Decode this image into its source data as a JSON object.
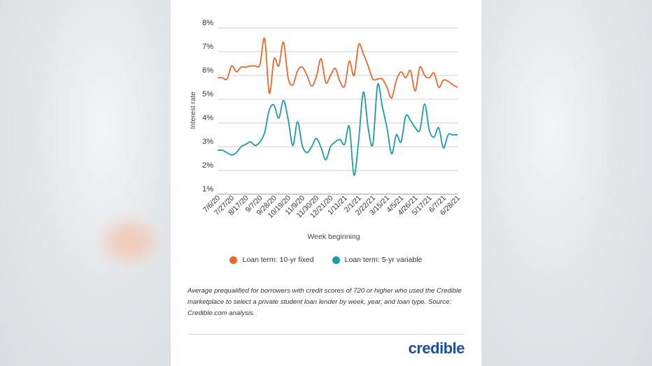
{
  "chart_data": {
    "type": "line",
    "title": "",
    "xlabel": "Week beginning",
    "ylabel": "Interest rate",
    "ylim": [
      1,
      8
    ],
    "yticks": [
      "1%",
      "2%",
      "3%",
      "4%",
      "5%",
      "6%",
      "7%",
      "8%"
    ],
    "grid": true,
    "legend_position": "bottom",
    "x_tick_labels": [
      "7/6/20",
      "7/27/20",
      "8/17/20",
      "9/7/20",
      "9/28/20",
      "10/19/20",
      "11/9/20",
      "11/30/20",
      "12/21/20",
      "1/11/21",
      "2/1/21",
      "2/22/21",
      "3/15/21",
      "4/5/21",
      "4/26/21",
      "5/17/21",
      "6/7/21",
      "6/28/21"
    ],
    "x": [
      "7/6/20",
      "7/13/20",
      "7/20/20",
      "7/27/20",
      "8/3/20",
      "8/10/20",
      "8/17/20",
      "8/24/20",
      "8/31/20",
      "9/7/20",
      "9/14/20",
      "9/21/20",
      "9/28/20",
      "10/5/20",
      "10/12/20",
      "10/19/20",
      "10/26/20",
      "11/2/20",
      "11/9/20",
      "11/16/20",
      "11/23/20",
      "11/30/20",
      "12/7/20",
      "12/14/20",
      "12/21/20",
      "12/28/20",
      "1/4/21",
      "1/11/21",
      "1/18/21",
      "1/25/21",
      "2/1/21",
      "2/8/21",
      "2/15/21",
      "2/22/21",
      "3/1/21",
      "3/8/21",
      "3/15/21",
      "3/22/21",
      "3/29/21",
      "4/5/21",
      "4/12/21",
      "4/19/21",
      "4/26/21",
      "5/3/21",
      "5/10/21",
      "5/17/21",
      "5/24/21",
      "5/31/21",
      "6/7/21",
      "6/14/21",
      "6/21/21",
      "6/28/21"
    ],
    "series": [
      {
        "name": "Loan term: 10-yr fixed",
        "color": "#e8692e",
        "values": [
          5.9,
          5.9,
          5.85,
          6.4,
          6.15,
          6.35,
          6.35,
          6.4,
          6.4,
          6.45,
          7.55,
          5.25,
          6.7,
          6.4,
          7.4,
          5.9,
          5.6,
          6.2,
          6.35,
          6.0,
          5.55,
          5.95,
          6.7,
          5.7,
          6.0,
          6.3,
          5.75,
          5.55,
          6.6,
          6.0,
          7.3,
          6.9,
          6.4,
          5.85,
          5.85,
          5.85,
          5.5,
          5.05,
          5.8,
          6.15,
          5.9,
          6.2,
          5.35,
          6.35,
          6.0,
          5.9,
          6.1,
          5.5,
          5.8,
          5.75,
          5.6,
          5.5
        ]
      },
      {
        "name": "Loan term: 5-yr variable",
        "color": "#1e9aa8",
        "values": [
          2.85,
          2.85,
          2.75,
          2.65,
          2.75,
          3.0,
          3.1,
          3.2,
          3.05,
          3.2,
          3.6,
          4.55,
          4.75,
          4.2,
          4.95,
          4.15,
          3.05,
          4.05,
          3.05,
          2.75,
          3.0,
          3.35,
          2.95,
          2.45,
          3.0,
          3.2,
          3.3,
          3.1,
          3.85,
          1.8,
          3.3,
          5.3,
          3.8,
          3.1,
          5.6,
          4.7,
          3.8,
          2.7,
          3.5,
          3.2,
          4.3,
          4.1,
          3.8,
          3.7,
          4.8,
          3.7,
          3.4,
          3.8,
          2.95,
          3.5,
          3.5,
          3.5
        ]
      }
    ]
  },
  "legend": {
    "fixed_label": "Loan term: 10-yr fixed",
    "variable_label": "Loan term: 5-yr variable",
    "fixed_color": "#e8692e",
    "variable_color": "#1e9aa8"
  },
  "footnote": "Average prequalified for borrowers with credit scores of 720 or higher who used the Credible marketplace to select a private student loan lender by week, year, and loan type. Source: Credible.com analysis.",
  "brand": "credible"
}
